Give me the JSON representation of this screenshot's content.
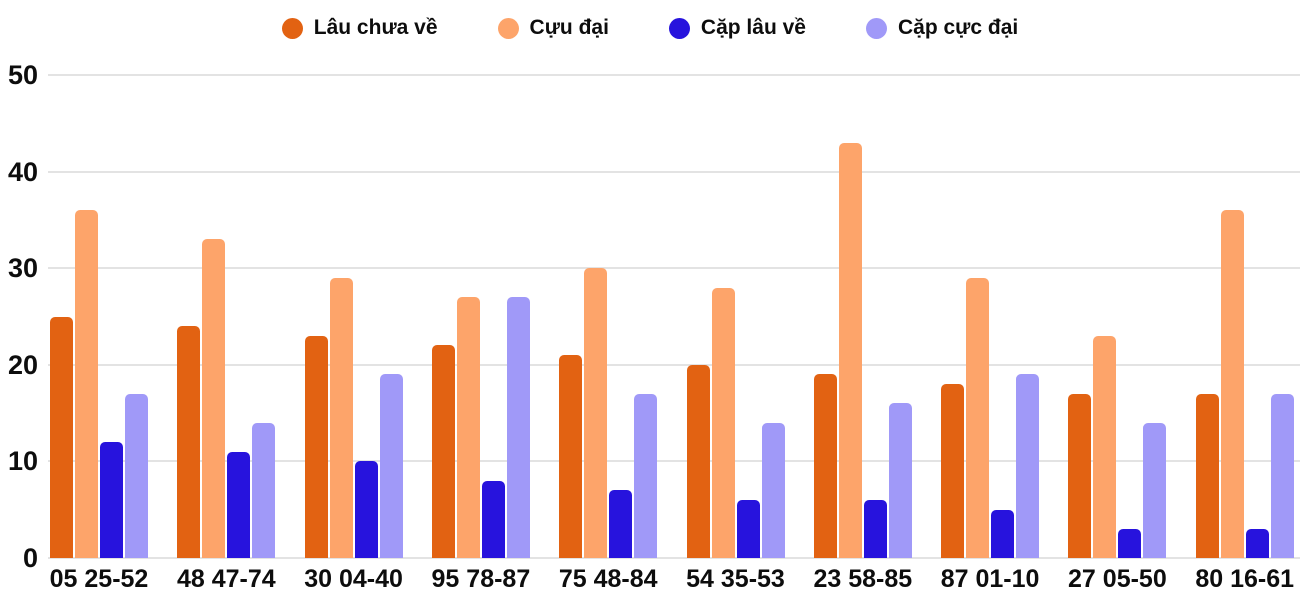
{
  "chart_data": {
    "type": "bar",
    "title": "",
    "xlabel": "",
    "ylabel": "",
    "ylim": [
      0,
      50
    ],
    "yticks": [
      0,
      10,
      20,
      30,
      40,
      50
    ],
    "grid": true,
    "legend_position": "top",
    "categories": [
      "05 25-52",
      "48 47-74",
      "30 04-40",
      "95 78-87",
      "75 48-84",
      "54 35-53",
      "23 58-85",
      "87 01-10",
      "27 05-50",
      "80 16-61"
    ],
    "series": [
      {
        "name": "Lâu chưa về",
        "color": "#e26212",
        "values": [
          25,
          24,
          23,
          22,
          21,
          20,
          19,
          18,
          17,
          17
        ]
      },
      {
        "name": "Cựu đại",
        "color": "#fda46a",
        "values": [
          36,
          33,
          29,
          27,
          30,
          28,
          43,
          29,
          23,
          36
        ]
      },
      {
        "name": "Cặp lâu về",
        "color": "#2713dd",
        "values": [
          12,
          11,
          10,
          8,
          7,
          6,
          6,
          5,
          3,
          3
        ]
      },
      {
        "name": "Cặp cực đại",
        "color": "#a099f8",
        "values": [
          17,
          14,
          19,
          27,
          17,
          14,
          16,
          19,
          14,
          17
        ]
      }
    ]
  },
  "colors": {
    "gridline": "#e3e3e3",
    "text": "#0d0d0d",
    "background": "#ffffff"
  }
}
